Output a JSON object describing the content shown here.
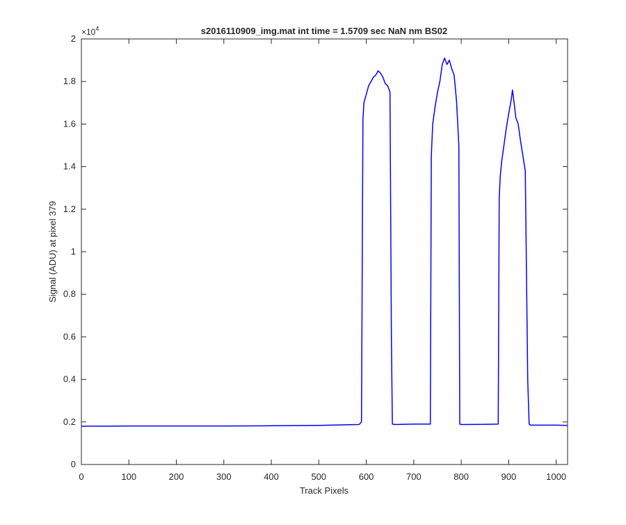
{
  "figure": {
    "title": "s2016110909_img.mat int time = 1.5709 sec  NaN nm BS02",
    "xlabel": "Track Pixels",
    "ylabel": "Signal (ADU) at pixel 379",
    "y_exponent_base": "×10",
    "y_exponent_power": "4"
  },
  "chart_data": {
    "type": "line",
    "title": "s2016110909_img.mat int time = 1.5709 sec  NaN nm BS02",
    "xlabel": "Track Pixels",
    "ylabel": "Signal (ADU) at pixel 379",
    "xlim": [
      0,
      1024
    ],
    "ylim": [
      0,
      20000
    ],
    "y_scale_exponent": 4,
    "grid": false,
    "x_ticks": [
      0,
      100,
      200,
      300,
      400,
      500,
      600,
      700,
      800,
      900,
      1000
    ],
    "x_tick_labels": [
      "0",
      "100",
      "200",
      "300",
      "400",
      "500",
      "600",
      "700",
      "800",
      "900",
      "1000"
    ],
    "y_ticks": [
      0,
      2000,
      4000,
      6000,
      8000,
      10000,
      12000,
      14000,
      16000,
      18000,
      20000
    ],
    "y_tick_labels": [
      "0",
      "0.2",
      "0.4",
      "0.6",
      "0.8",
      "1",
      "1.2",
      "1.4",
      "1.6",
      "1.8",
      "2"
    ],
    "line_color": "#0000ff",
    "series": [
      {
        "x": [
          0,
          50,
          100,
          200,
          300,
          400,
          500,
          585,
          590,
          593,
          595,
          600,
          605,
          610,
          615,
          620,
          625,
          630,
          635,
          640,
          645,
          650,
          653,
          655,
          660,
          700,
          735,
          737,
          740,
          745,
          750,
          755,
          760,
          765,
          770,
          775,
          780,
          785,
          790,
          795,
          797,
          800,
          850,
          878,
          880,
          882,
          885,
          890,
          895,
          900,
          905,
          908,
          912,
          915,
          920,
          925,
          930,
          935,
          940,
          943,
          946,
          950,
          1000,
          1024
        ],
        "y": [
          1800,
          1800,
          1810,
          1810,
          1810,
          1820,
          1840,
          1880,
          2000,
          16200,
          17000,
          17400,
          17800,
          18000,
          18200,
          18300,
          18500,
          18400,
          18200,
          17900,
          17800,
          17500,
          6000,
          1900,
          1880,
          1900,
          1900,
          14500,
          16000,
          16800,
          17500,
          18000,
          18800,
          19100,
          18800,
          19000,
          18600,
          18300,
          17100,
          15000,
          1900,
          1880,
          1890,
          1900,
          12500,
          13500,
          14200,
          15000,
          15800,
          16500,
          17100,
          17600,
          16900,
          16300,
          16000,
          15200,
          14500,
          13800,
          4000,
          1900,
          1850,
          1850,
          1850,
          1840
        ]
      }
    ]
  }
}
